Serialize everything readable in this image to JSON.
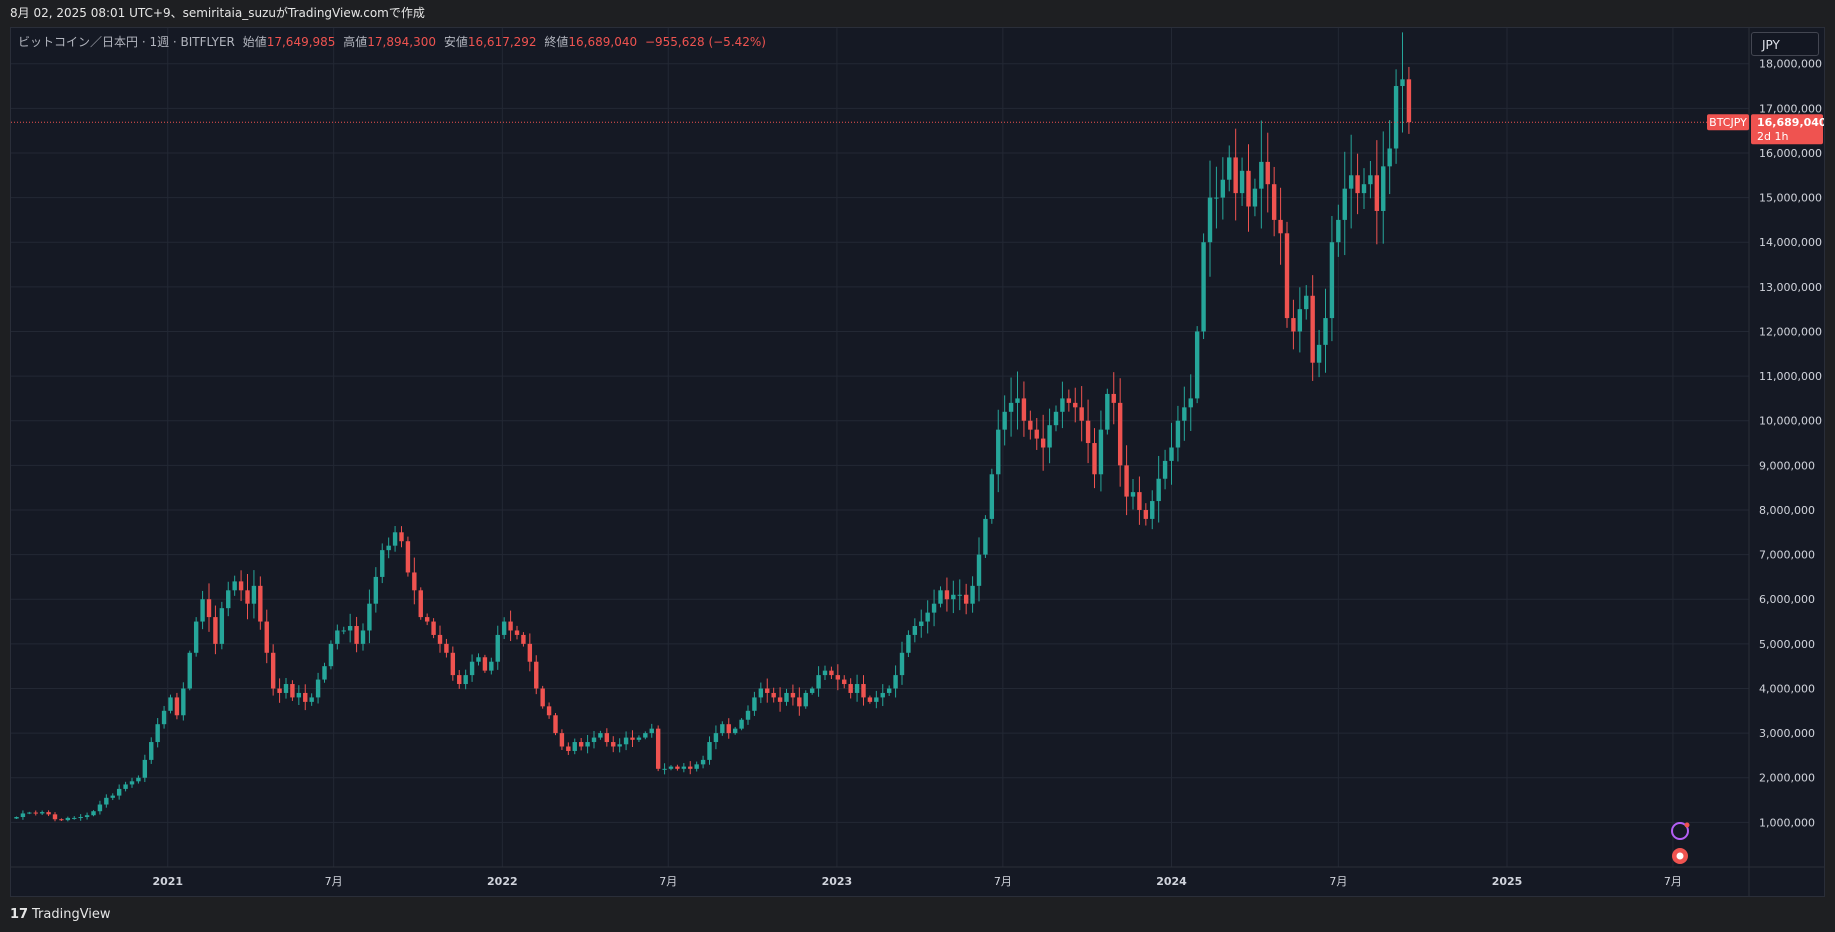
{
  "header": {
    "caption": "8月 02, 2025 08:01 UTC+9、semiritaia_suzuがTradingView.comで作成"
  },
  "legend": {
    "symbol": "ビットコイン／日本円 · 1週 · BITFLYER",
    "open_label": "始値",
    "open": "17,649,985",
    "high_label": "高値",
    "high": "17,894,300",
    "low_label": "安値",
    "low": "16,617,292",
    "close_label": "終値",
    "close": "16,689,040",
    "change": "−955,628 (−5.42%)"
  },
  "currency": "JPY",
  "price_tag": {
    "symbol": "BTCJPY",
    "price": "16,689,040",
    "countdown": "2d 1h"
  },
  "footer": {
    "brand": "TradingView",
    "logo_icon": "tradingview-logo-icon"
  },
  "colors": {
    "up": "#26a69a",
    "down": "#ef5350",
    "background": "#151924",
    "grid": "#232834"
  },
  "chart_data": {
    "type": "candlestick",
    "symbol": "BTCJPY",
    "interval": "1W",
    "ylim": [
      0,
      18800000
    ],
    "y_ticks": [
      1000000,
      2000000,
      3000000,
      4000000,
      5000000,
      6000000,
      7000000,
      8000000,
      9000000,
      10000000,
      11000000,
      12000000,
      13000000,
      14000000,
      15000000,
      16000000,
      17000000,
      18000000
    ],
    "y_tick_labels": [
      "1,000,000",
      "2,000,000",
      "3,000,000",
      "4,000,000",
      "5,000,000",
      "6,000,000",
      "7,000,000",
      "8,000,000",
      "9,000,000",
      "10,000,000",
      "11,000,000",
      "12,000,000",
      "13,000,000",
      "14,000,000",
      "15,000,000",
      "16,000,000",
      "17,000,000",
      "18,000,000"
    ],
    "x_ticks": [
      {
        "date": "2021-01-01",
        "label": "2021"
      },
      {
        "date": "2021-07-01",
        "label": "7月"
      },
      {
        "date": "2022-01-01",
        "label": "2022"
      },
      {
        "date": "2022-07-01",
        "label": "7月"
      },
      {
        "date": "2023-01-01",
        "label": "2023"
      },
      {
        "date": "2023-07-01",
        "label": "7月"
      },
      {
        "date": "2024-01-01",
        "label": "2024"
      },
      {
        "date": "2024-07-01",
        "label": "7月"
      },
      {
        "date": "2025-01-01",
        "label": "2025"
      },
      {
        "date": "2025-07-01",
        "label": "7月"
      }
    ],
    "x_range": [
      "2020-07-14",
      "2025-09-22"
    ],
    "first_week": "2020-07-20",
    "last_price": 16689040,
    "closes": [
      1.12,
      1.2,
      1.22,
      1.2,
      1.23,
      1.18,
      1.07,
      1.05,
      1.1,
      1.1,
      1.12,
      1.16,
      1.25,
      1.4,
      1.55,
      1.6,
      1.75,
      1.85,
      1.92,
      2.0,
      2.4,
      2.8,
      3.2,
      3.5,
      3.8,
      3.4,
      4.0,
      4.8,
      5.5,
      6.0,
      5.6,
      5.0,
      5.8,
      6.2,
      6.4,
      6.2,
      5.9,
      6.3,
      5.5,
      4.8,
      4.0,
      3.9,
      4.1,
      3.8,
      3.9,
      3.7,
      3.8,
      4.2,
      4.5,
      5.0,
      5.3,
      5.3,
      5.4,
      5.0,
      5.3,
      5.9,
      6.5,
      7.1,
      7.2,
      7.5,
      7.3,
      6.6,
      6.2,
      5.6,
      5.5,
      5.2,
      5.0,
      4.8,
      4.3,
      4.1,
      4.3,
      4.6,
      4.7,
      4.4,
      4.6,
      5.2,
      5.5,
      5.3,
      5.2,
      5.0,
      4.6,
      4.0,
      3.6,
      3.4,
      3.0,
      2.7,
      2.6,
      2.8,
      2.7,
      2.8,
      2.9,
      3.0,
      2.8,
      2.7,
      2.75,
      2.9,
      2.85,
      2.9,
      3.0,
      3.1,
      2.2,
      2.2,
      2.25,
      2.2,
      2.25,
      2.2,
      2.3,
      2.4,
      2.8,
      3.0,
      3.2,
      3.0,
      3.1,
      3.3,
      3.5,
      3.8,
      4.0,
      3.9,
      3.8,
      3.7,
      3.9,
      3.8,
      3.6,
      3.9,
      4.0,
      4.3,
      4.4,
      4.3,
      4.2,
      4.1,
      3.9,
      4.1,
      3.8,
      3.7,
      3.8,
      3.9,
      4.0,
      4.3,
      4.8,
      5.2,
      5.4,
      5.5,
      5.7,
      5.9,
      6.2,
      6.0,
      6.1,
      6.1,
      5.9,
      6.3,
      7.0,
      7.8,
      8.8,
      9.8,
      10.2,
      10.4,
      10.5,
      10.0,
      9.8,
      9.6,
      9.4,
      9.9,
      10.2,
      10.5,
      10.4,
      10.3,
      10.0,
      9.5,
      8.8,
      9.8,
      10.6,
      10.4,
      9.0,
      8.3,
      8.4,
      8.0,
      7.8,
      8.2,
      8.7,
      9.1,
      9.4,
      10.0,
      10.3,
      10.5,
      12.0,
      14.0,
      15.0,
      15.0,
      15.4,
      15.9,
      15.1,
      15.6,
      14.8,
      15.2,
      15.8,
      15.3,
      14.5,
      14.2,
      12.3,
      12.0,
      12.5,
      12.8,
      11.3,
      11.7,
      12.3,
      14.0,
      14.5,
      15.2,
      15.5,
      15.1,
      15.3,
      15.5,
      14.7,
      15.7,
      16.1,
      17.5,
      17.65,
      16.69
    ]
  }
}
